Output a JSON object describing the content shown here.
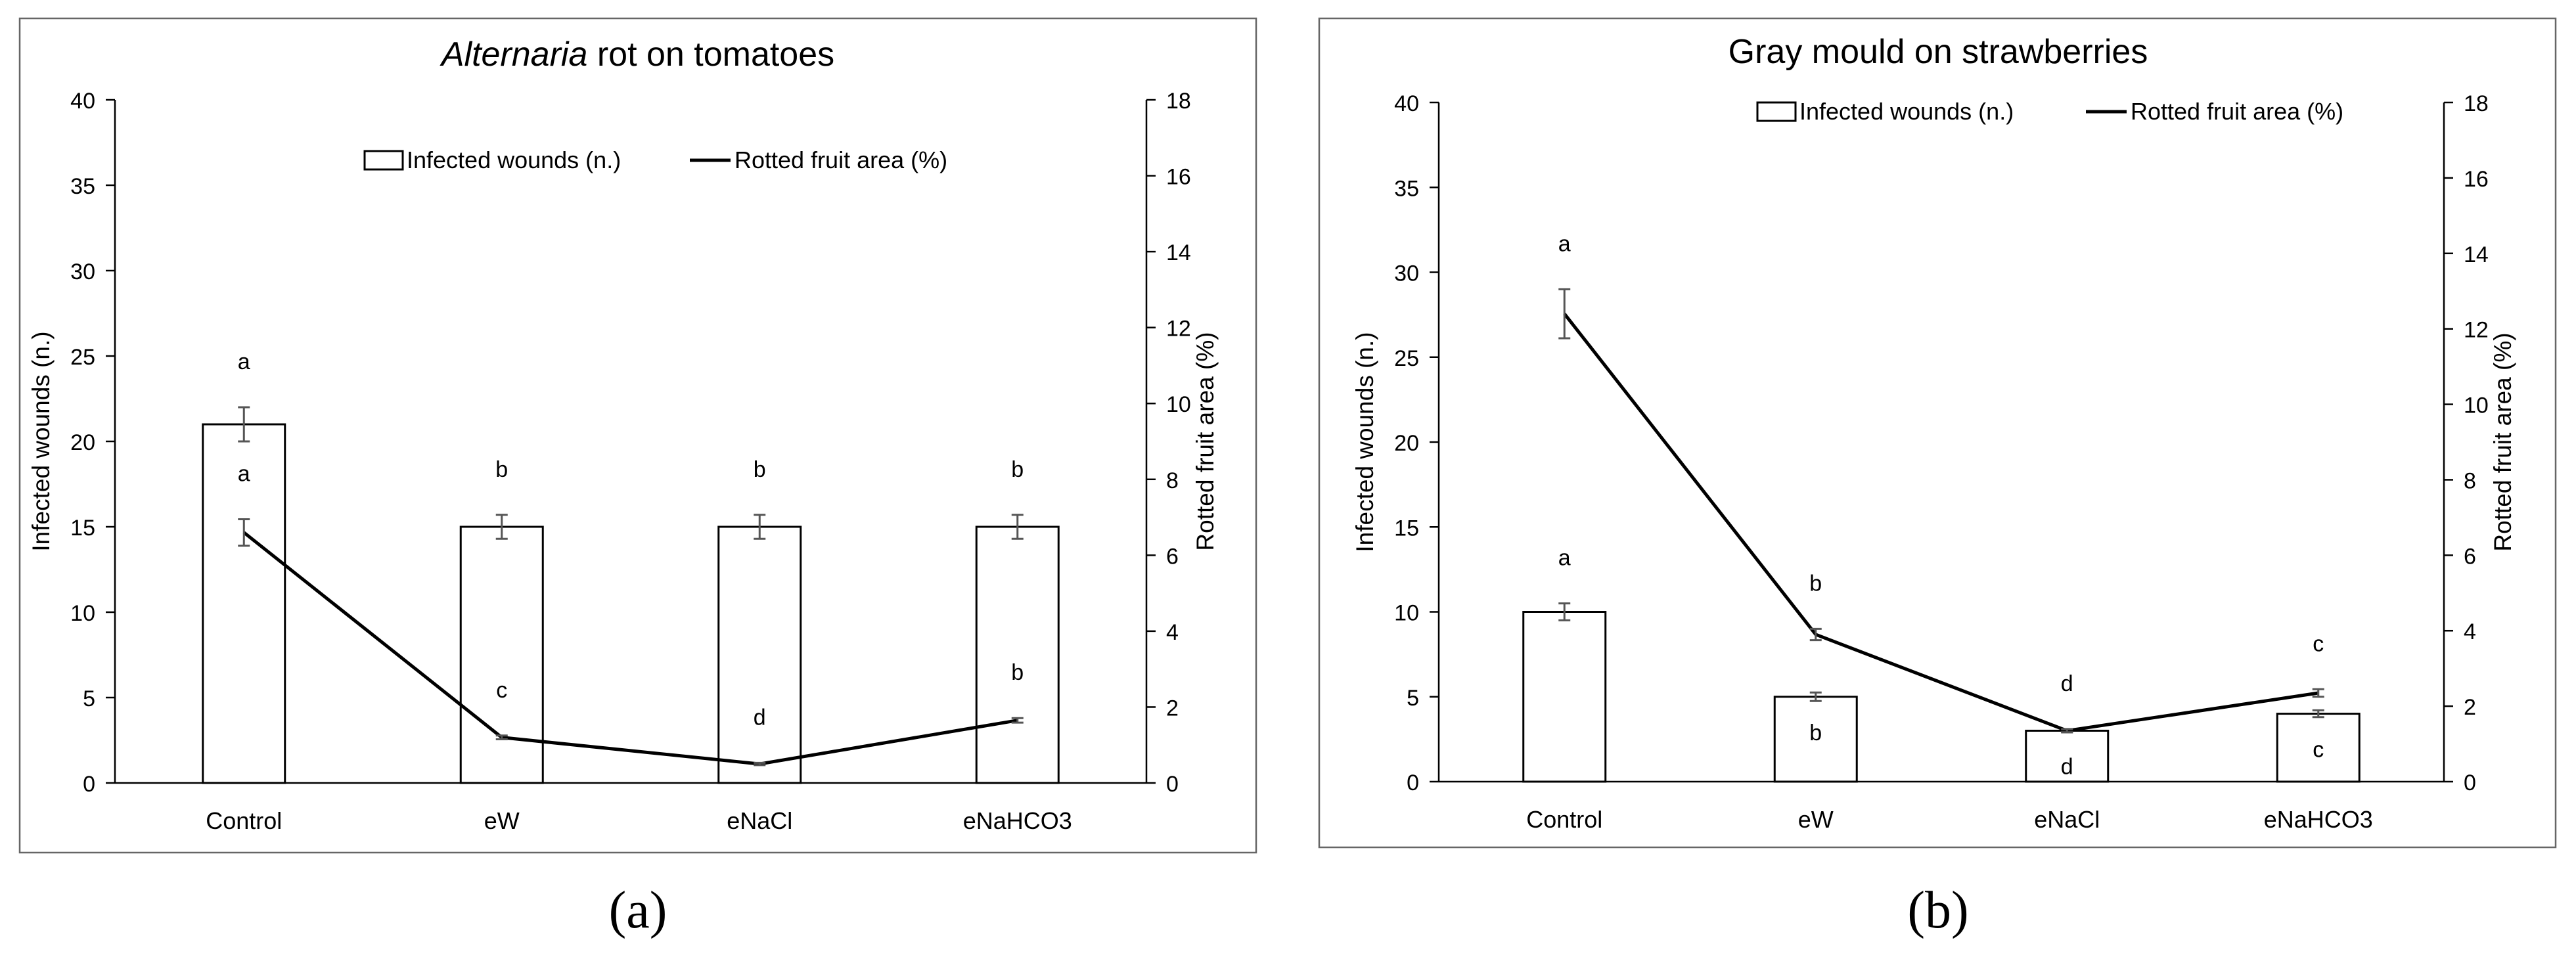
{
  "panels": [
    {
      "caption": "(a)",
      "chart_data": {
        "type": "bar",
        "title_italic": "Alternaria",
        "title_rest": " rot on tomatoes",
        "categories": [
          "Control",
          "eW",
          "eNaCl",
          "eNaHCO3"
        ],
        "ylabel": "Infected wounds (n.)",
        "y2label": "Rotted fruit area (%)",
        "ylim": [
          0,
          40
        ],
        "yticks": [
          0,
          5,
          10,
          15,
          20,
          25,
          30,
          35,
          40
        ],
        "y2lim": [
          0,
          18
        ],
        "y2ticks": [
          0,
          2,
          4,
          6,
          8,
          10,
          12,
          14,
          16,
          18
        ],
        "legend": [
          "Infected wounds (n.)",
          "Rotted fruit area (%)"
        ],
        "legend_placement": "top-center",
        "series": [
          {
            "name": "Infected wounds (n.)",
            "type": "bar",
            "axis": "left",
            "values": [
              21,
              15,
              15,
              15
            ],
            "errors": [
              1.0,
              0.7,
              0.7,
              0.7
            ],
            "letters": [
              "a",
              "b",
              "b",
              "b"
            ],
            "letter_pos": [
              "above",
              "above",
              "above",
              "above"
            ]
          },
          {
            "name": "Rotted fruit area (%)",
            "type": "line",
            "axis": "right",
            "values": [
              6.6,
              1.2,
              0.5,
              1.65
            ],
            "errors": [
              0.35,
              0.05,
              0.03,
              0.06
            ],
            "letters": [
              "a",
              "c",
              "d",
              "b"
            ],
            "letter_pos": [
              "above",
              "above",
              "above",
              "above"
            ]
          }
        ]
      }
    },
    {
      "caption": "(b)",
      "chart_data": {
        "type": "bar",
        "title_italic": "",
        "title_rest": "Gray mould on strawberries",
        "categories": [
          "Control",
          "eW",
          "eNaCl",
          "eNaHCO3"
        ],
        "ylabel": "Infected wounds (n.)",
        "y2label": "Rotted fruit area (%)",
        "ylim": [
          0,
          40
        ],
        "yticks": [
          0,
          5,
          10,
          15,
          20,
          25,
          30,
          35,
          40
        ],
        "y2lim": [
          0,
          18
        ],
        "y2ticks": [
          0,
          2,
          4,
          6,
          8,
          10,
          12,
          14,
          16,
          18
        ],
        "legend": [
          "Infected wounds (n.)",
          "Rotted fruit area (%)"
        ],
        "legend_placement": "top-center",
        "series": [
          {
            "name": "Infected wounds (n.)",
            "type": "bar",
            "axis": "left",
            "values": [
              10,
              5,
              3,
              4
            ],
            "errors": [
              0.5,
              0.25,
              0.1,
              0.2
            ],
            "letters": [
              "a",
              "b",
              "d",
              "c"
            ],
            "letter_pos": [
              "above",
              "below",
              "below",
              "below"
            ]
          },
          {
            "name": "Rotted fruit area (%)",
            "type": "line",
            "axis": "right",
            "values": [
              12.4,
              3.9,
              1.35,
              2.35
            ],
            "errors": [
              0.65,
              0.15,
              0.04,
              0.1
            ],
            "letters": [
              "a",
              "b",
              "d",
              "c"
            ],
            "letter_pos": [
              "above",
              "above",
              "above",
              "above"
            ]
          }
        ]
      }
    }
  ]
}
